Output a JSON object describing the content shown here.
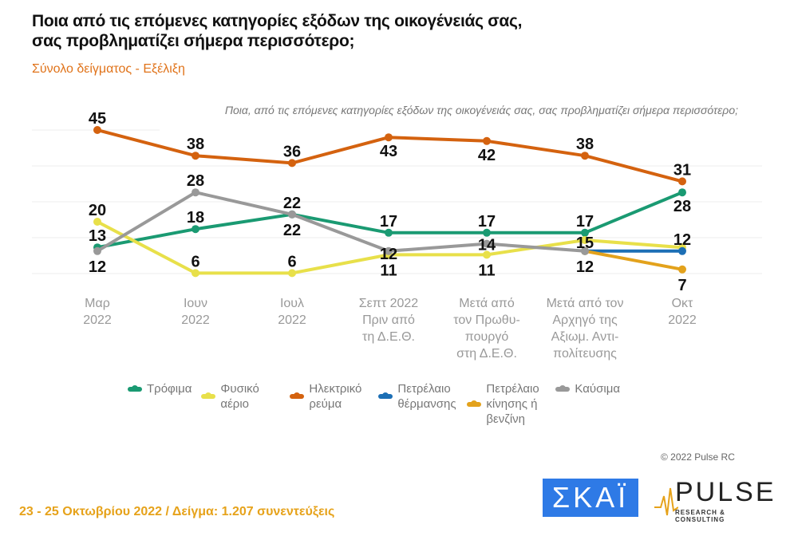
{
  "title_line1": "Ποια από τις επόμενες κατηγορίες εξόδων της οικογένειάς σας,",
  "title_line2": "σας προβληματίζει σήμερα περισσότερο;",
  "subtitle": "Σύνολο δείγματος - Εξέλιξη",
  "copyright": "© 2022 Pulse RC",
  "footer": "23 - 25  Οκτωβρίου  2022  /  Δείγμα:  1.207 συνεντεύξεις",
  "logos": {
    "skai": "ΣΚΑΪ",
    "pulse": "PULSE",
    "pulse_sub": "RESEARCH & CONSULTING"
  },
  "chart_data": {
    "type": "line",
    "title": "Ποια, από τις επόμενες κατηγορίες εξόδων της οικογένειάς σας, σας προβληματίζει σήμερα περισσότερο;",
    "categories": [
      [
        "Μαρ",
        "2022"
      ],
      [
        "Ιουν",
        "2022"
      ],
      [
        "Ιουλ",
        "2022"
      ],
      [
        "Σεπτ 2022",
        "Πριν από",
        "τη Δ.Ε.Θ."
      ],
      [
        "Μετά από",
        "τον Πρωθυ-",
        "πουργό",
        "στη Δ.Ε.Θ."
      ],
      [
        "Μετά από τον",
        "Αρχηγό της",
        "Αξιωμ. Αντι-",
        "πολίτευσης"
      ],
      [
        "Οκτ",
        "2022"
      ]
    ],
    "grid": true,
    "legend": "bottom",
    "series": [
      {
        "name": "Τρόφιμα",
        "color": "#1a9a72",
        "values": [
          13,
          18,
          22,
          17,
          17,
          17,
          28
        ],
        "labels": [
          13,
          18,
          22,
          17,
          17,
          17,
          28
        ]
      },
      {
        "name": "Φυσικό αέριο",
        "color": "#e8e04a",
        "values": [
          20,
          6,
          6,
          11,
          11,
          15,
          13
        ],
        "labels": [
          20,
          6,
          6,
          11,
          11,
          15,
          null
        ]
      },
      {
        "name": "Ηλεκτρικό ρεύμα",
        "color": "#d4620f",
        "values": [
          45,
          38,
          36,
          43,
          42,
          38,
          31
        ],
        "labels": [
          45,
          38,
          36,
          43,
          42,
          38,
          31
        ]
      },
      {
        "name": "Πετρέλαιο θέρμανσης",
        "color": "#1c6fb5",
        "values": [
          null,
          null,
          null,
          null,
          null,
          12,
          12
        ],
        "labels": [
          null,
          null,
          null,
          null,
          null,
          null,
          12
        ]
      },
      {
        "name": "Πετρέλαιο κίνησης ή βενζίνη",
        "color": "#e3a21c",
        "values": [
          null,
          null,
          null,
          null,
          null,
          12,
          7
        ],
        "labels": [
          null,
          null,
          null,
          null,
          null,
          null,
          7
        ]
      },
      {
        "name": "Καύσιμα",
        "color": "#999999",
        "values": [
          12,
          28,
          22,
          12,
          14,
          12,
          null
        ],
        "labels": [
          12,
          28,
          22,
          12,
          14,
          12,
          null
        ]
      }
    ]
  }
}
